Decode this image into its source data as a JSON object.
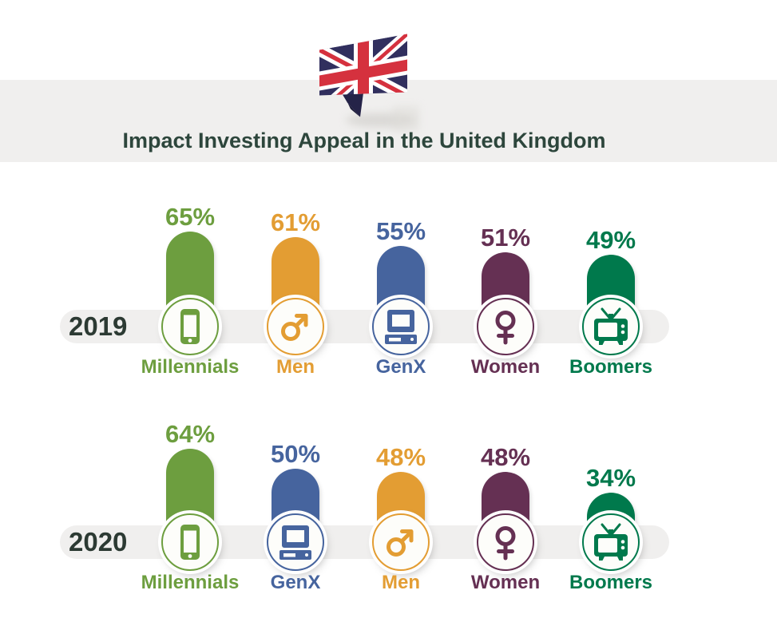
{
  "title": "Impact Investing Appeal in the United Kingdom",
  "flag_icon": "uk-flag-ribbon",
  "colors": {
    "title_text": "#2d463c",
    "year_text": "#2c3a33",
    "band": "#f0efee",
    "circle_fill": "#fdfdfa",
    "flag_navy": "#312f5e",
    "flag_red": "#d5313e",
    "flag_fold": "#252348",
    "green": "#6d9e3f",
    "orange": "#e39d33",
    "blue": "#46649e",
    "purple": "#653053",
    "dark_green": "#00794c"
  },
  "chart_data": {
    "type": "bar",
    "title": "Impact Investing Appeal in the United Kingdom",
    "unit": "percent",
    "grid": false,
    "legend_position": "none",
    "value_range": [
      0,
      100
    ],
    "rows": [
      {
        "year": "2019",
        "items": [
          {
            "label": "Millennials",
            "pct": 65,
            "display": "65%",
            "color_key": "green",
            "icon": "smartphone-icon"
          },
          {
            "label": "Men",
            "pct": 61,
            "display": "61%",
            "color_key": "orange",
            "icon": "male-icon"
          },
          {
            "label": "GenX",
            "pct": 55,
            "display": "55%",
            "color_key": "blue",
            "icon": "desktop-computer-icon"
          },
          {
            "label": "Women",
            "pct": 51,
            "display": "51%",
            "color_key": "purple",
            "icon": "female-icon"
          },
          {
            "label": "Boomers",
            "pct": 49,
            "display": "49%",
            "color_key": "dark_green",
            "icon": "tv-icon"
          }
        ]
      },
      {
        "year": "2020",
        "items": [
          {
            "label": "Millennials",
            "pct": 64,
            "display": "64%",
            "color_key": "green",
            "icon": "smartphone-icon"
          },
          {
            "label": "GenX",
            "pct": 50,
            "display": "50%",
            "color_key": "blue",
            "icon": "desktop-computer-icon"
          },
          {
            "label": "Men",
            "pct": 48,
            "display": "48%",
            "color_key": "orange",
            "icon": "male-icon"
          },
          {
            "label": "Women",
            "pct": 48,
            "display": "48%",
            "color_key": "purple",
            "icon": "female-icon"
          },
          {
            "label": "Boomers",
            "pct": 34,
            "display": "34%",
            "color_key": "dark_green",
            "icon": "tv-icon"
          }
        ]
      }
    ]
  }
}
